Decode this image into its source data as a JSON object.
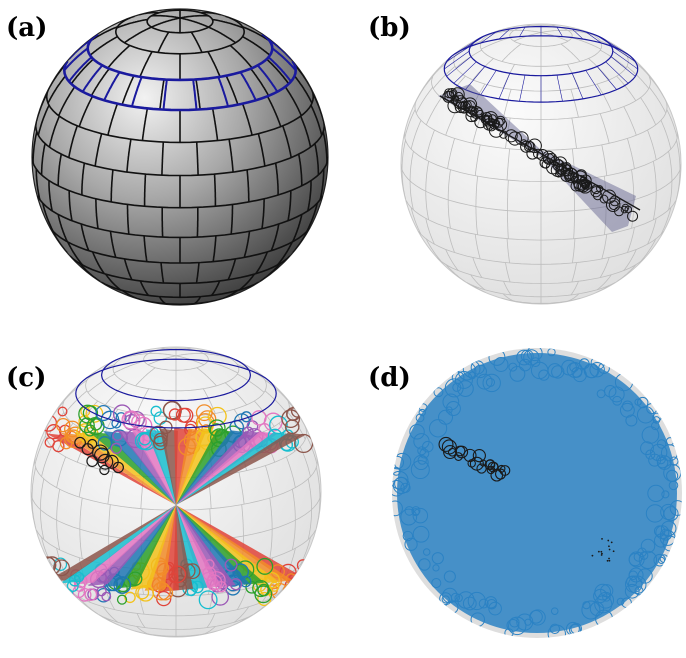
{
  "panels": [
    {
      "id": "a",
      "label": "(a)"
    },
    {
      "id": "b",
      "label": "(b)"
    },
    {
      "id": "c",
      "label": "(c)"
    },
    {
      "id": "d",
      "label": "(d)"
    }
  ],
  "colors": {
    "band_outline": "#1a1a9e",
    "sphere_light": "#e8e8e8",
    "grid_line": "#bdbdbd",
    "trajectory_dark": "#1a1a1a",
    "wedge_fill": "#5a5a8a",
    "cloud_blue": "#2b82c4",
    "wedge_palette": [
      "#e0443a",
      "#f28c28",
      "#f3c21b",
      "#2ca02c",
      "#1f77b4",
      "#9b59b6",
      "#e377c2",
      "#17becf",
      "#8c564b"
    ]
  }
}
